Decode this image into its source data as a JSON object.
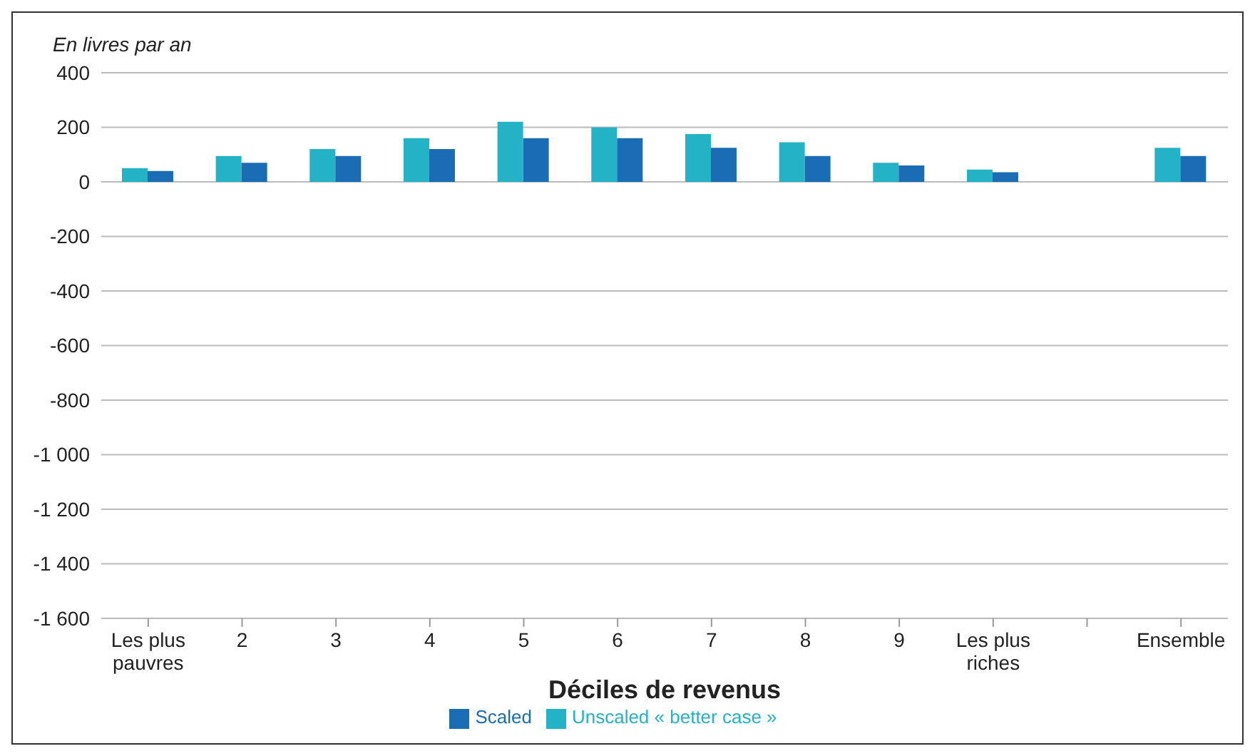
{
  "chart_data": {
    "type": "bar",
    "xlabel": "Déciles de revenus",
    "ylabel": "En livres par an",
    "categories": [
      "Les plus pauvres",
      "2",
      "3",
      "4",
      "5",
      "6",
      "7",
      "8",
      "9",
      "Les plus riches",
      null,
      "Ensemble"
    ],
    "series": [
      {
        "name": "Unscaled « better case »",
        "color": "#23b2c6",
        "values": [
          50,
          95,
          120,
          160,
          220,
          200,
          175,
          145,
          70,
          45,
          null,
          125
        ]
      },
      {
        "name": "Scaled",
        "color": "#1a6db5",
        "values": [
          40,
          70,
          95,
          120,
          160,
          160,
          125,
          95,
          60,
          35,
          null,
          95
        ]
      }
    ],
    "ylim": [
      -1600,
      400
    ],
    "yticks": [
      {
        "value": -1600,
        "label": "-1 600"
      },
      {
        "value": -1400,
        "label": "-1 400"
      },
      {
        "value": -1200,
        "label": "-1 200"
      },
      {
        "value": -1000,
        "label": "-1 000"
      },
      -800,
      -600,
      -400,
      -200,
      0,
      200,
      400
    ],
    "grid": "y",
    "legend": "bottom"
  }
}
